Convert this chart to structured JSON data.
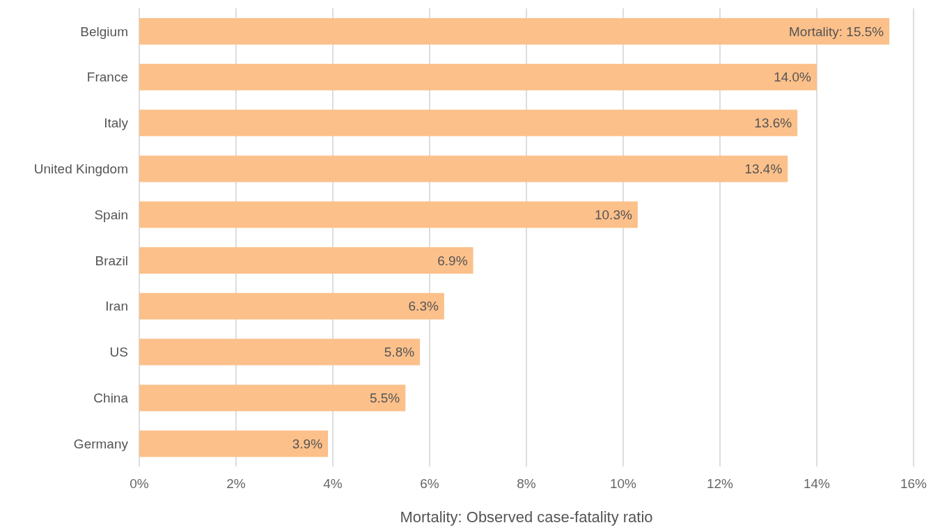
{
  "chart_data": {
    "type": "bar",
    "orientation": "horizontal",
    "xlabel": "Mortality: Observed case-fatality ratio",
    "categories": [
      "Belgium",
      "France",
      "Italy",
      "United Kingdom",
      "Spain",
      "Brazil",
      "Iran",
      "US",
      "China",
      "Germany"
    ],
    "values": [
      15.5,
      14.0,
      13.6,
      13.4,
      10.3,
      6.9,
      6.3,
      5.8,
      5.5,
      3.9
    ],
    "value_labels": [
      "Mortality: 15.5%",
      "14.0%",
      "13.6%",
      "13.4%",
      "10.3%",
      "6.9%",
      "6.3%",
      "5.8%",
      "5.5%",
      "3.9%"
    ],
    "color": "#fcc08a",
    "xlim": [
      0,
      16
    ],
    "xticks": [
      {
        "value": 0,
        "label": "0%"
      },
      {
        "value": 2,
        "label": "2%"
      },
      {
        "value": 4,
        "label": "4%"
      },
      {
        "value": 6,
        "label": "6%"
      },
      {
        "value": 8,
        "label": "8%"
      },
      {
        "value": 10,
        "label": "10%"
      },
      {
        "value": 12,
        "label": "12%"
      },
      {
        "value": 14,
        "label": "14%"
      },
      {
        "value": 16,
        "label": "16%"
      }
    ],
    "grid": "x",
    "legend": false
  }
}
